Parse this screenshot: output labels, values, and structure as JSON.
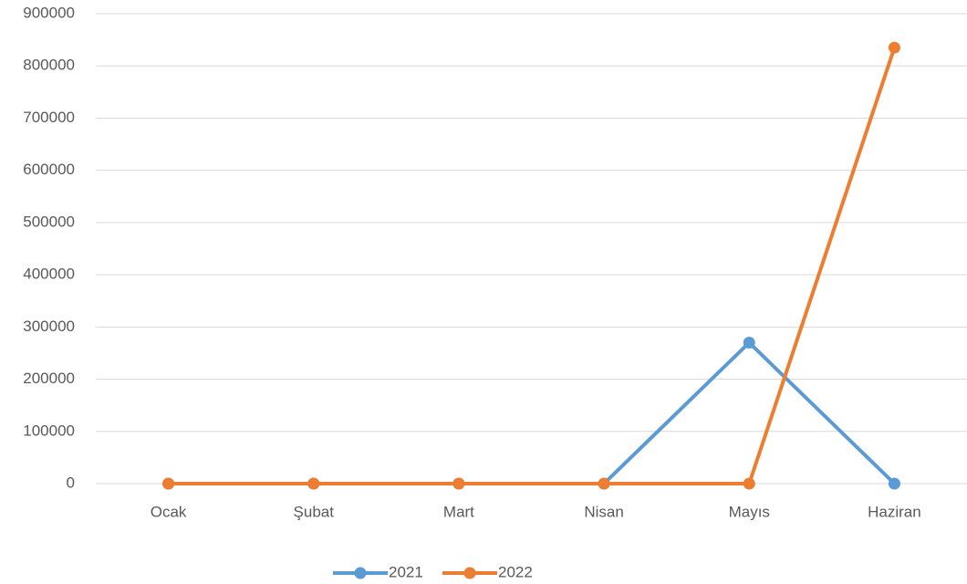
{
  "chart_data": {
    "type": "line",
    "categories": [
      "Ocak",
      "Şubat",
      "Mart",
      "Nisan",
      "Mayıs",
      "Haziran"
    ],
    "series": [
      {
        "name": "2021",
        "color": "#5b9bd5",
        "values": [
          0,
          0,
          0,
          0,
          270000,
          0
        ]
      },
      {
        "name": "2022",
        "color": "#ed7d31",
        "values": [
          0,
          0,
          0,
          0,
          0,
          835000
        ]
      }
    ],
    "ylim": [
      0,
      900000
    ],
    "yticks": [
      0,
      100000,
      200000,
      300000,
      400000,
      500000,
      600000,
      700000,
      800000,
      900000
    ],
    "grid": true,
    "legend": "bottom"
  }
}
